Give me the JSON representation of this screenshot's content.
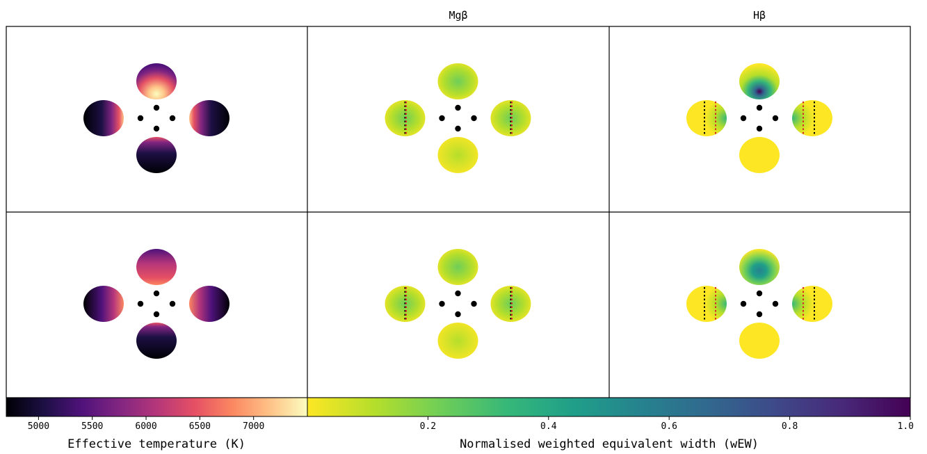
{
  "column_titles": [
    "",
    "Mgβ",
    "Hβ"
  ],
  "colors": {
    "magma": [
      "#000004",
      "#1c1044",
      "#4f127b",
      "#812581",
      "#b5367a",
      "#e55064",
      "#fb8761",
      "#fec287",
      "#fcfdbf"
    ],
    "viridis_r": [
      "#fde725",
      "#b5de2b",
      "#6ece58",
      "#35b779",
      "#1f9e89",
      "#26828e",
      "#31688e",
      "#3e4989",
      "#482878",
      "#440154"
    ],
    "ring_dot": "#000000",
    "marker_black": "#000000",
    "marker_red": "#d62728"
  },
  "chart_data": [
    {
      "type": "heatmap",
      "name": "effective-temperature-maps",
      "colormap": "magma",
      "rows": 2,
      "colorbar": {
        "label": "Effective temperature (K)",
        "range": [
          4700,
          7500
        ],
        "ticks": [
          5000,
          5500,
          6000,
          6500,
          7000
        ],
        "tick_labels": [
          "5000",
          "5500",
          "6000",
          "6500",
          "7000"
        ]
      },
      "components": [
        "top",
        "left",
        "right",
        "bottom"
      ]
    },
    {
      "type": "heatmap",
      "name": "mgb-equivalent-width-maps",
      "title": "Mgβ",
      "colormap": "viridis_r",
      "rows": 2,
      "components": [
        "top",
        "left",
        "right",
        "bottom"
      ]
    },
    {
      "type": "heatmap",
      "name": "hb-equivalent-width-maps",
      "title": "Hβ",
      "colormap": "viridis_r",
      "rows": 2,
      "components": [
        "top",
        "left",
        "right",
        "bottom"
      ]
    },
    {
      "type": "colorbar",
      "name": "wew-colorbar",
      "label": "Normalised weighted equivalent width (wEW)",
      "range": [
        0,
        1.0
      ],
      "ticks": [
        0.2,
        0.4,
        0.6,
        0.8,
        1.0
      ],
      "tick_labels": [
        "0.2",
        "0.4",
        "0.6",
        "0.8",
        "1.0"
      ],
      "colormap": "viridis_r"
    }
  ]
}
